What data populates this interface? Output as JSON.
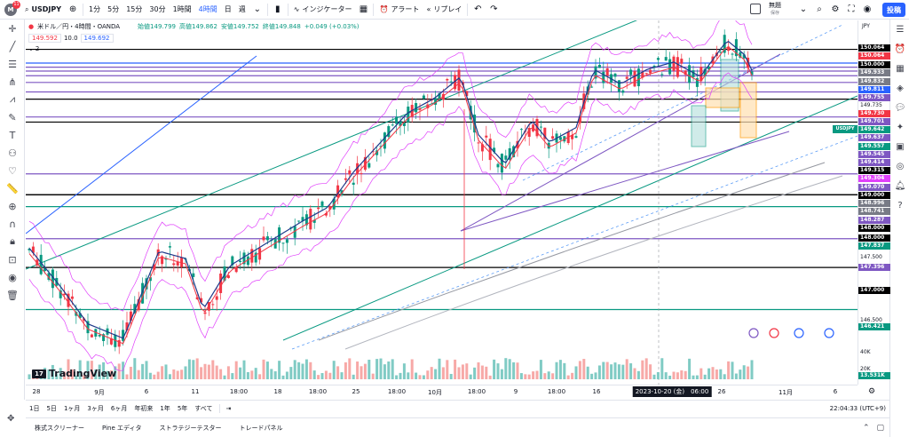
{
  "topbar": {
    "notif_count": "11",
    "avatar_letter": "M",
    "symbol": "USDJPY",
    "timeframes": [
      "1分",
      "5分",
      "15分",
      "30分",
      "1時間",
      "4時間",
      "日",
      "週"
    ],
    "active_timeframe": "4時間",
    "indicators_label": "インジケーター",
    "alert_label": "アラート",
    "replay_label": "リプレイ",
    "save_title": "無題",
    "save_sub": "保存",
    "post_label": "投稿"
  },
  "legend": {
    "title": "米ドル／円・4時間・OANDA",
    "open": "始値149.799",
    "high": "高値149.862",
    "low": "安値149.752",
    "close": "終値149.848",
    "change": "+0.049 (+0.03%)",
    "bid": "149.592",
    "spread": "10.0",
    "ask": "149.692",
    "layer_count": "2"
  },
  "price_axis": {
    "currency": "JPY",
    "labels": [
      {
        "text": "150.064",
        "color": "#000000"
      },
      {
        "text": "150.064",
        "color": "#f23645"
      },
      {
        "text": "150.000",
        "color": "#000000"
      },
      {
        "text": "149.933",
        "color": "#787b86"
      },
      {
        "text": "149.832",
        "color": "#787b86"
      },
      {
        "text": "149.811",
        "color": "#2962ff"
      },
      {
        "text": "149.755",
        "color": "#7e57c2"
      },
      {
        "text": "149.735",
        "color": "#plain"
      },
      {
        "text": "149.730",
        "color": "#f23645"
      },
      {
        "text": "149.701",
        "color": "#7e57c2"
      },
      {
        "text": "149.642",
        "color": "#089981"
      },
      {
        "text": "149.637",
        "color": "#7e57c2"
      },
      {
        "text": "149.557",
        "color": "#089981"
      },
      {
        "text": "149.545",
        "color": "#7e57c2"
      },
      {
        "text": "149.414",
        "color": "#7e57c2"
      },
      {
        "text": "149.315",
        "color": "#000000"
      },
      {
        "text": "149.304",
        "color": "#e040fb"
      },
      {
        "text": "149.070",
        "color": "#7e57c2"
      },
      {
        "text": "149.000",
        "color": "#000000"
      },
      {
        "text": "148.996",
        "color": "#787b86"
      },
      {
        "text": "148.741",
        "color": "#787b86"
      },
      {
        "text": "148.287",
        "color": "#7e57c2"
      },
      {
        "text": "148.000",
        "color": "#000000"
      },
      {
        "text": "148.000",
        "color": "#000000"
      },
      {
        "text": "147.837",
        "color": "#089981"
      },
      {
        "text": "147.500",
        "color": "#plain"
      },
      {
        "text": "147.396",
        "color": "#7e57c2"
      },
      {
        "text": "147.000",
        "color": "#000000"
      },
      {
        "text": "146.500",
        "color": "#plain"
      },
      {
        "text": "146.421",
        "color": "#089981"
      },
      {
        "text": "40K",
        "color": "#plain"
      },
      {
        "text": "20K",
        "color": "#plain"
      },
      {
        "text": "13.531K",
        "color": "#089981"
      }
    ],
    "symbol_tag": "USDJPY"
  },
  "time_axis": {
    "labels": [
      "28",
      "9月",
      "6",
      "11",
      "18:00",
      "18",
      "18:00",
      "25",
      "18:00",
      "10月",
      "18:00",
      "9",
      "18:00",
      "16",
      "2023-10-20 (金)　06:00",
      "26",
      "11月",
      "6"
    ]
  },
  "tfbar": {
    "ranges": [
      "1日",
      "5日",
      "1ヶ月",
      "3ヶ月",
      "6ヶ月",
      "年初来",
      "1年",
      "5年",
      "すべて"
    ],
    "clock": "22:04:33 (UTC+9)"
  },
  "panel": {
    "tabs": [
      "株式スクリーナー",
      "Pine エディタ",
      "ストラテジーテスター",
      "トレードパネル"
    ]
  },
  "branding": {
    "name": "TradingView",
    "mark": "17"
  },
  "chart_data": {
    "type": "candlestick",
    "symbol": "USDJPY",
    "interval": "4時間",
    "ylim": [
      146.0,
      150.3
    ],
    "last_close": 149.848,
    "horizontal_levels": [
      150.0,
      149.811,
      149.755,
      149.701,
      149.637,
      149.545,
      149.414,
      149.315,
      149.07,
      149.0,
      148.287,
      148.0,
      148.0,
      147.837,
      147.396,
      147.0,
      146.421
    ]
  }
}
